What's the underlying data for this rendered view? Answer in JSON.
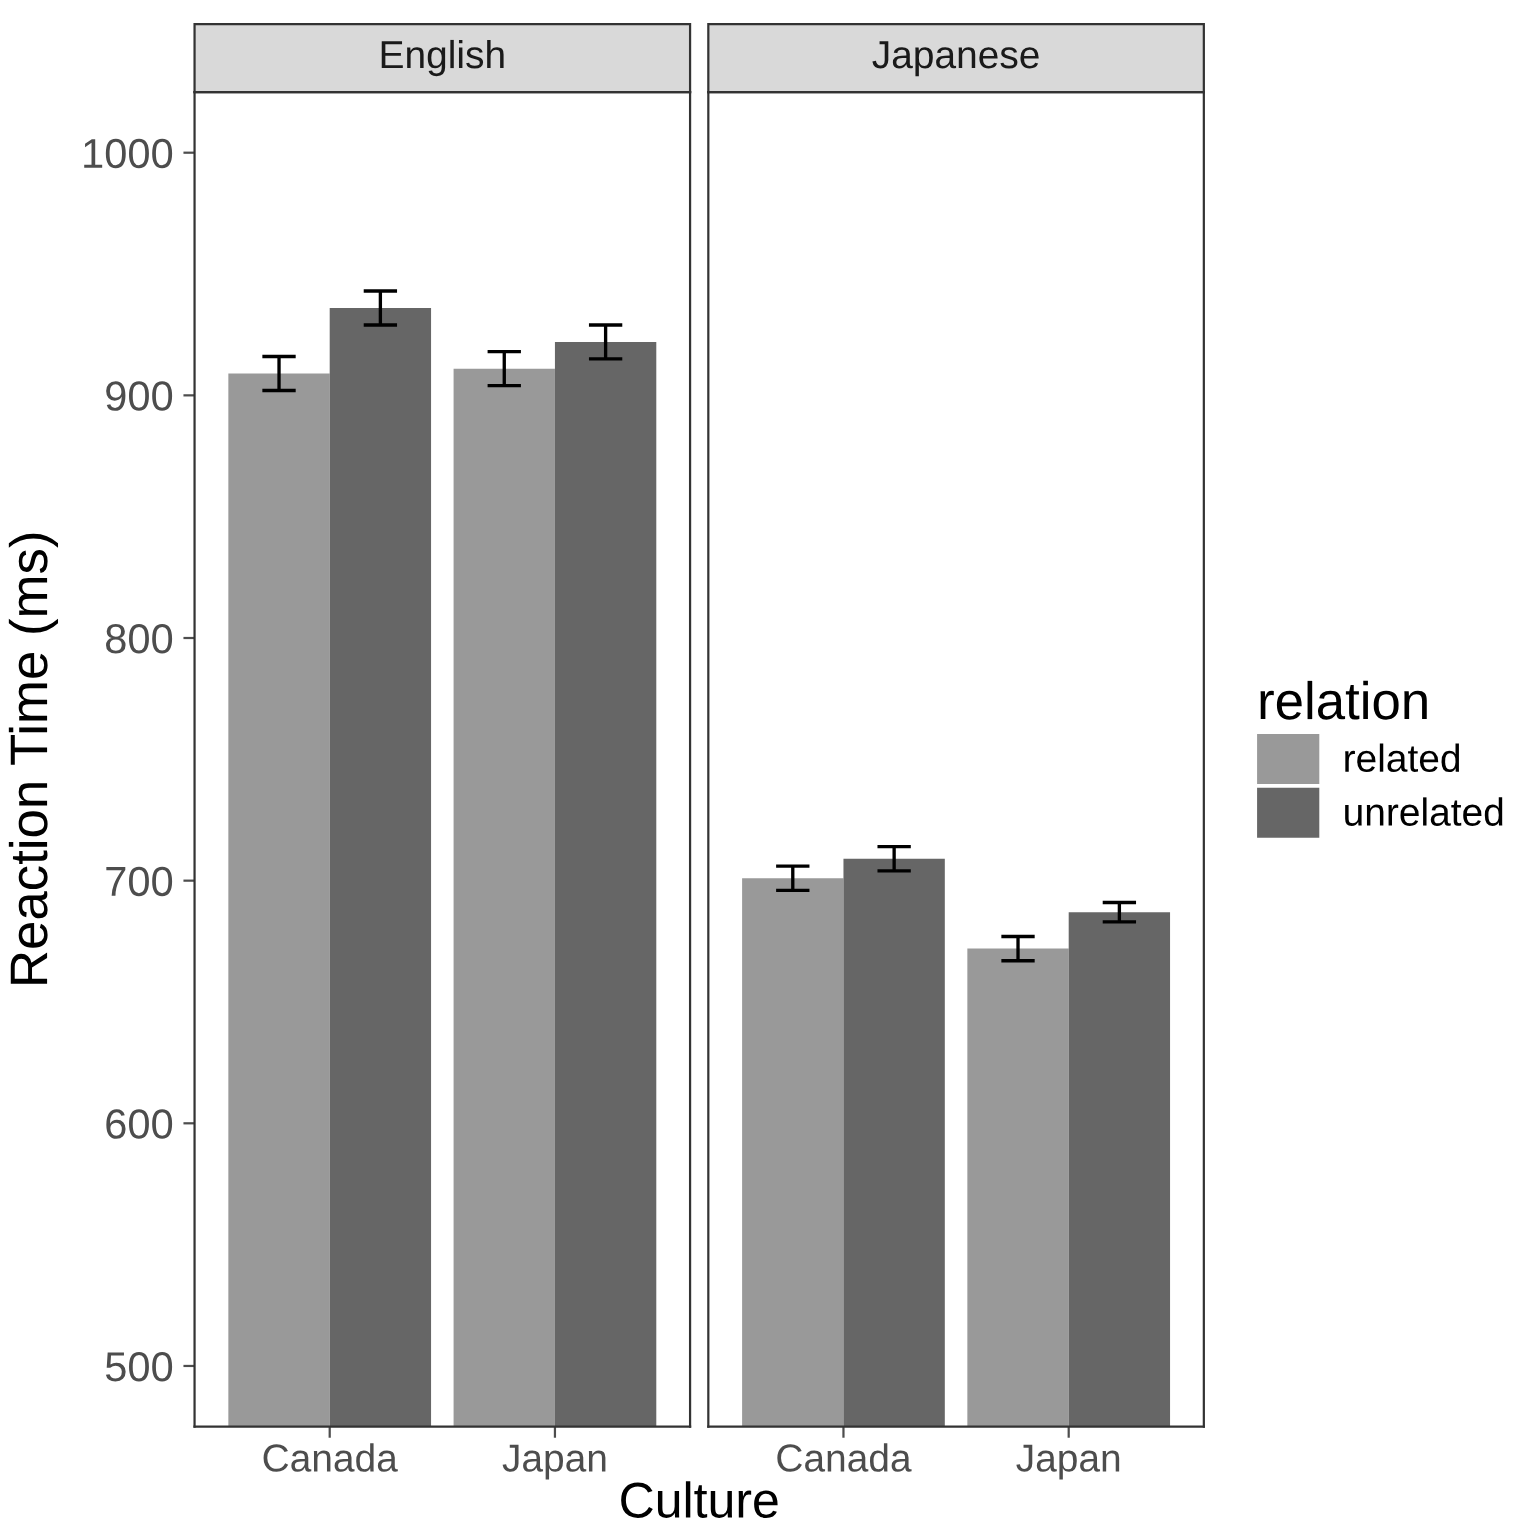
{
  "chart_data": [
    {
      "type": "bar",
      "title": "English",
      "ylabel": "Reaction Time (ms)",
      "categories": [
        "Canada",
        "Japan"
      ],
      "series": [
        {
          "color": "#999999",
          "values": [
            909,
            911
          ],
          "errors": [
            7,
            7
          ]
        },
        {
          "color": "#666666",
          "values": [
            936,
            922
          ],
          "errors": [
            7,
            7
          ]
        }
      ],
      "ylim": [
        475,
        1025
      ],
      "yticks": [
        500,
        600,
        700,
        800,
        900,
        1000
      ],
      "grid": false
    },
    {
      "type": "bar",
      "title": "Japanese",
      "xlabel": "Culture",
      "legend_title": "relation",
      "categories": [
        "Canada",
        "Japan"
      ],
      "series": [
        {
          "name": "related",
          "color": "#999999",
          "values": [
            701,
            672
          ],
          "errors": [
            5,
            5
          ]
        },
        {
          "name": "unrelated",
          "color": "#666666",
          "values": [
            709,
            687
          ],
          "errors": [
            5,
            4
          ]
        }
      ],
      "ylim": [
        475,
        1025
      ],
      "yticks": [
        500,
        600,
        700,
        800,
        900,
        1000
      ],
      "tick_labels": "x",
      "grid": false,
      "legend": "right"
    }
  ]
}
